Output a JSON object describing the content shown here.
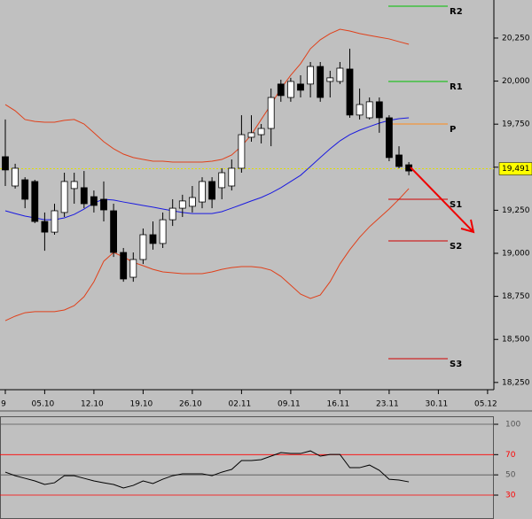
{
  "chart_data": [
    {
      "type": "candlestick",
      "categories": [
        "9",
        null,
        null,
        null,
        "05.10",
        null,
        null,
        null,
        null,
        "12.10",
        null,
        null,
        null,
        null,
        "19.10",
        null,
        null,
        null,
        null,
        "26.10",
        null,
        null,
        null,
        null,
        "02.11",
        null,
        null,
        null,
        null,
        "09.11",
        null,
        null,
        null,
        null,
        "16.11",
        null,
        null,
        null,
        null,
        "23.11",
        null,
        null,
        null,
        null,
        "30.11",
        null,
        null,
        null,
        null,
        "05.12"
      ],
      "open": [
        19561,
        19391,
        19427,
        19417,
        19185,
        19123,
        19237,
        19376,
        19381,
        19329,
        19314,
        19247,
        19005,
        18861,
        18964,
        19108,
        19057,
        19195,
        19262,
        19273,
        19298,
        19417,
        19381,
        19391,
        19494,
        19674,
        19689,
        19725,
        19983,
        19905,
        19983,
        19983,
        20085,
        19998,
        19998,
        20070,
        19803,
        19787,
        19880,
        19787,
        19571,
        19514,
        null,
        null,
        null,
        null,
        null,
        null,
        null,
        null
      ],
      "high": [
        19777,
        19520,
        19442,
        19427,
        19237,
        19288,
        19468,
        19468,
        19478,
        19365,
        19417,
        19288,
        19031,
        19005,
        19144,
        19185,
        19237,
        19314,
        19340,
        19391,
        19442,
        19442,
        19494,
        19545,
        19802,
        19802,
        19751,
        19957,
        20008,
        20019,
        20034,
        20111,
        20111,
        20060,
        20111,
        20188,
        19957,
        19905,
        19905,
        19802,
        19622,
        19530,
        null,
        null,
        null,
        null,
        null,
        null,
        null,
        null
      ],
      "low": [
        19391,
        19376,
        19262,
        19175,
        19015,
        19108,
        19211,
        19288,
        19262,
        19237,
        19185,
        18979,
        18835,
        18835,
        18938,
        19021,
        19031,
        19159,
        19211,
        19237,
        19262,
        19262,
        19314,
        19365,
        19468,
        19648,
        19638,
        19622,
        19880,
        19880,
        19905,
        19905,
        19880,
        19905,
        19983,
        19787,
        19777,
        19777,
        19700,
        19535,
        19494,
        19453,
        null,
        null,
        null,
        null,
        null,
        null,
        null,
        null
      ],
      "close": [
        19484,
        19494,
        19314,
        19185,
        19123,
        19247,
        19417,
        19417,
        19288,
        19278,
        19252,
        19005,
        18851,
        18964,
        19108,
        19057,
        19195,
        19262,
        19304,
        19324,
        19417,
        19314,
        19468,
        19494,
        19689,
        19700,
        19725,
        19905,
        19916,
        19998,
        19947,
        20085,
        19905,
        20019,
        20075,
        19803,
        19864,
        19880,
        19787,
        19556,
        19504,
        19478,
        null,
        null,
        null,
        null,
        null,
        null,
        null,
        null
      ],
      "up_color": "#ffffff",
      "down_color": "#000000",
      "overlays": [
        {
          "color": "#e0401a",
          "values": [
            19864,
            19828,
            19777,
            19766,
            19761,
            19761,
            19772,
            19777,
            19751,
            19700,
            19648,
            19607,
            19576,
            19556,
            19545,
            19535,
            19535,
            19530,
            19530,
            19530,
            19530,
            19535,
            19545,
            19571,
            19622,
            19689,
            19777,
            19864,
            19957,
            20034,
            20101,
            20188,
            20240,
            20276,
            20301,
            20291,
            20276,
            20265,
            20255,
            20245,
            20229,
            20214,
            null,
            null,
            null,
            null,
            null,
            null,
            null,
            null
          ]
        },
        {
          "color": "#e0401a",
          "values": [
            18609,
            18635,
            18655,
            18661,
            18661,
            18661,
            18671,
            18696,
            18748,
            18835,
            18954,
            19005,
            18979,
            18948,
            18928,
            18907,
            18892,
            18887,
            18882,
            18882,
            18882,
            18892,
            18907,
            18917,
            18923,
            18923,
            18917,
            18902,
            18866,
            18815,
            18763,
            18738,
            18758,
            18835,
            18938,
            19021,
            19093,
            19154,
            19206,
            19257,
            19314,
            19376,
            null,
            null,
            null,
            null,
            null,
            null,
            null,
            null
          ]
        },
        {
          "color": "#1a1ae0",
          "values": [
            19247,
            19231,
            19216,
            19206,
            19195,
            19195,
            19206,
            19226,
            19257,
            19293,
            19314,
            19309,
            19298,
            19288,
            19278,
            19268,
            19257,
            19247,
            19237,
            19231,
            19231,
            19231,
            19242,
            19262,
            19283,
            19304,
            19324,
            19350,
            19381,
            19417,
            19453,
            19504,
            19556,
            19607,
            19653,
            19689,
            19715,
            19736,
            19756,
            19772,
            19782,
            19787,
            null,
            null,
            null,
            null,
            null,
            null,
            null,
            null
          ]
        }
      ],
      "levels": [
        {
          "label": "R2",
          "value": 20435,
          "color": "#00c000"
        },
        {
          "label": "R1",
          "value": 19998,
          "color": "#00c000"
        },
        {
          "label": "P",
          "value": 19751,
          "color": "#ff8c1a"
        },
        {
          "label": "S1",
          "value": 19314,
          "color": "#d00000"
        },
        {
          "label": "S2",
          "value": 19072,
          "color": "#d00000"
        },
        {
          "label": "S3",
          "value": 18388,
          "color": "#d00000"
        }
      ],
      "last": {
        "value": 19491,
        "label": "19,491",
        "color": "#ffff00"
      },
      "ylim": [
        18208,
        20471
      ],
      "yticks": [
        {
          "value": 18250,
          "label": "18,250"
        },
        {
          "value": 18500,
          "label": "18,500"
        },
        {
          "value": 18750,
          "label": "18,750"
        },
        {
          "value": 19000,
          "label": "19,000"
        },
        {
          "value": 19250,
          "label": "19,250"
        },
        {
          "value": 19500,
          "label": "19,500"
        },
        {
          "value": 19750,
          "label": "19,750"
        },
        {
          "value": 20000,
          "label": "20,000"
        },
        {
          "value": 20250,
          "label": "20,250"
        }
      ]
    },
    {
      "type": "line",
      "values": [
        52.7,
        49.2,
        46.6,
        44,
        40.5,
        42.2,
        49.2,
        49.2,
        46.6,
        44,
        42.2,
        40.5,
        37,
        39.6,
        44,
        41.4,
        45.7,
        49.2,
        51,
        51,
        51,
        49.2,
        52.7,
        55.4,
        64.1,
        64.1,
        65,
        68.5,
        72,
        71.1,
        71.1,
        73.7,
        68.5,
        70.2,
        70.2,
        57.1,
        57.1,
        59.7,
        54.5,
        45.7,
        44.9,
        43.1
      ],
      "color": "#000000",
      "ylim": [
        6.4,
        107.9
      ],
      "yticks": [
        100,
        70,
        50,
        30
      ],
      "ytick_colors": [
        "#555555",
        "#ff0000",
        "#555555",
        "#ff0000"
      ]
    }
  ]
}
